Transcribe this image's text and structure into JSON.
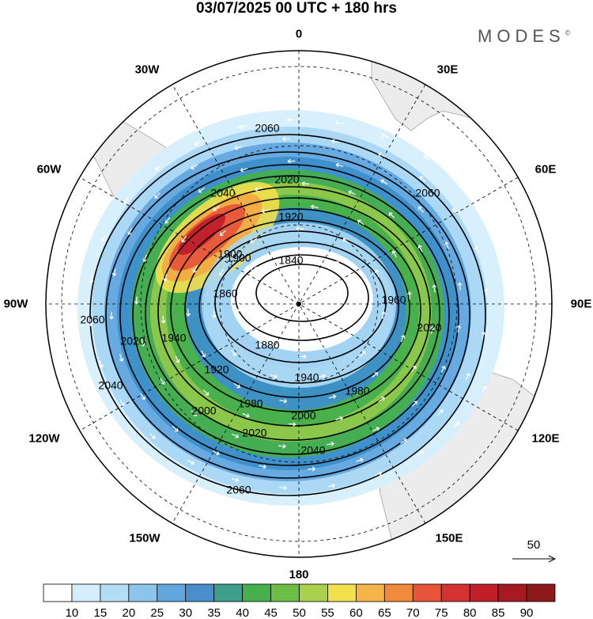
{
  "title": "03/07/2025  00 UTC  + 180 hrs",
  "brand": "MODES",
  "brand_mark": "©",
  "longitude_labels": {
    "top": "0",
    "bottom": "180",
    "left": "90W",
    "right": "90E",
    "w30": "30W",
    "e30": "30E",
    "w60": "60W",
    "e60": "60E",
    "w120": "120W",
    "e120": "120E",
    "w150": "150W",
    "e150": "150E"
  },
  "contour_labels": [
    "1840",
    "1860",
    "1880",
    "1900",
    "1920",
    "1940",
    "1960",
    "1980",
    "2000",
    "2020",
    "2040",
    "2060"
  ],
  "contour_labels_shown": {
    "c1840": "1840",
    "c1860": "1860",
    "c1880": "1880",
    "c1900": "1900",
    "c1920a": "1920",
    "c1920b": "1920",
    "c1940a": "1940",
    "c1940b": "1940",
    "c1960": "1960",
    "c1980a": "1980",
    "c1980b": "1980",
    "c2000a": "2000",
    "c2000b": "2000",
    "c2020a": "2020",
    "c2020b": "2020",
    "c2020c": "2020",
    "c2020d": "2020",
    "c2040a": "2040",
    "c2040b": "2040",
    "c2040c": "2040",
    "c2060a": "2060",
    "c2060b": "2060",
    "c2060c": "2060",
    "c2060d": "2060",
    "c1900b": "1900"
  },
  "vector_reference": "50",
  "colorbar": {
    "ticks": [
      "10",
      "15",
      "20",
      "25",
      "30",
      "35",
      "40",
      "45",
      "50",
      "55",
      "60",
      "65",
      "70",
      "75",
      "80",
      "85",
      "90"
    ],
    "colors": [
      "#ffffff",
      "#d6eefc",
      "#b3dcf5",
      "#8cc4ec",
      "#62a8df",
      "#4a8fc9",
      "#3e9e8c",
      "#46b04c",
      "#6cbd45",
      "#a8d04a",
      "#f2e04e",
      "#f4b44a",
      "#f08a3c",
      "#e6553a",
      "#d73232",
      "#c01f2a",
      "#a61b22",
      "#8c1a1a"
    ]
  },
  "speed_colors": {
    "s10": "#d6eefc",
    "s20": "#a9d7f4",
    "s30": "#62a8df",
    "s40": "#3d8fc9",
    "s45": "#46b04c",
    "s50": "#8ec84a",
    "s55": "#f2e04e",
    "s65": "#f4a842",
    "s75": "#e6553a",
    "s85": "#c01f2a"
  }
}
